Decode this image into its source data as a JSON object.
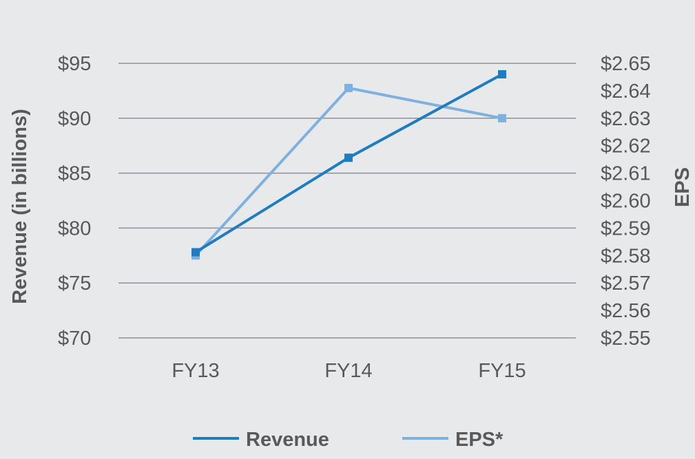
{
  "chart_data": {
    "type": "line",
    "categories": [
      "FY13",
      "FY14",
      "FY15"
    ],
    "series": [
      {
        "name": "Revenue",
        "axis": "left",
        "color": "#1e7dc1",
        "values": [
          77.8,
          86.4,
          94.0
        ]
      },
      {
        "name": "EPS*",
        "axis": "right",
        "color": "#7fb1e0",
        "values": [
          2.58,
          2.641,
          2.63
        ]
      }
    ],
    "ylabel": "Revenue (in billions)",
    "y2label": "EPS",
    "ylim": [
      70,
      95
    ],
    "y2lim": [
      2.55,
      2.65
    ],
    "yticks": [
      "$95",
      "$90",
      "$85",
      "$80",
      "$75",
      "$70"
    ],
    "y2ticks": [
      "$2.65",
      "$2.64",
      "$2.63",
      "$2.62",
      "$2.61",
      "$2.60",
      "$2.59",
      "$2.58",
      "$2.57",
      "$2.56",
      "$2.55"
    ],
    "grid": true,
    "legend": "bottom"
  }
}
